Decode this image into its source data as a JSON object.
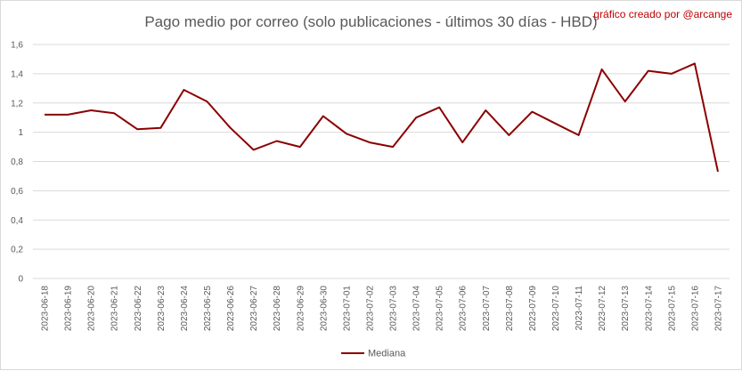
{
  "title": "Pago medio por correo (solo publicaciones - últimos 30 días - HBD)",
  "credit": "gráfico creado por @arcange",
  "colors": {
    "line": "#8b0000",
    "grid": "#d9d9d9",
    "text": "#595959"
  },
  "chart_data": {
    "type": "line",
    "title": "Pago medio por correo (solo publicaciones - últimos 30 días - HBD)",
    "xlabel": "",
    "ylabel": "",
    "ylim": [
      0,
      1.6
    ],
    "yticks": [
      {
        "value": 0,
        "label": "0"
      },
      {
        "value": 0.2,
        "label": "0,2"
      },
      {
        "value": 0.4,
        "label": "0,4"
      },
      {
        "value": 0.6,
        "label": "0,6"
      },
      {
        "value": 0.8,
        "label": "0,8"
      },
      {
        "value": 1,
        "label": "1"
      },
      {
        "value": 1.2,
        "label": "1,2"
      },
      {
        "value": 1.4,
        "label": "1,4"
      },
      {
        "value": 1.6,
        "label": "1,6"
      }
    ],
    "grid": true,
    "legend_position": "bottom",
    "categories": [
      "2023-06-18",
      "2023-06-19",
      "2023-06-20",
      "2023-06-21",
      "2023-06-22",
      "2023-06-23",
      "2023-06-24",
      "2023-06-25",
      "2023-06-26",
      "2023-06-27",
      "2023-06-28",
      "2023-06-29",
      "2023-06-30",
      "2023-07-01",
      "2023-07-02",
      "2023-07-03",
      "2023-07-04",
      "2023-07-05",
      "2023-07-06",
      "2023-07-07",
      "2023-07-08",
      "2023-07-09",
      "2023-07-10",
      "2023-07-11",
      "2023-07-12",
      "2023-07-13",
      "2023-07-14",
      "2023-07-15",
      "2023-07-16",
      "2023-07-17"
    ],
    "series": [
      {
        "name": "Mediana",
        "color": "#8b0000",
        "values": [
          1.12,
          1.12,
          1.15,
          1.13,
          1.02,
          1.03,
          1.29,
          1.21,
          1.03,
          0.88,
          0.94,
          0.9,
          1.11,
          0.99,
          0.93,
          0.9,
          1.1,
          1.17,
          0.93,
          1.15,
          0.98,
          1.14,
          1.06,
          0.98,
          1.43,
          1.21,
          1.42,
          1.4,
          1.47,
          0.73
        ]
      }
    ]
  }
}
